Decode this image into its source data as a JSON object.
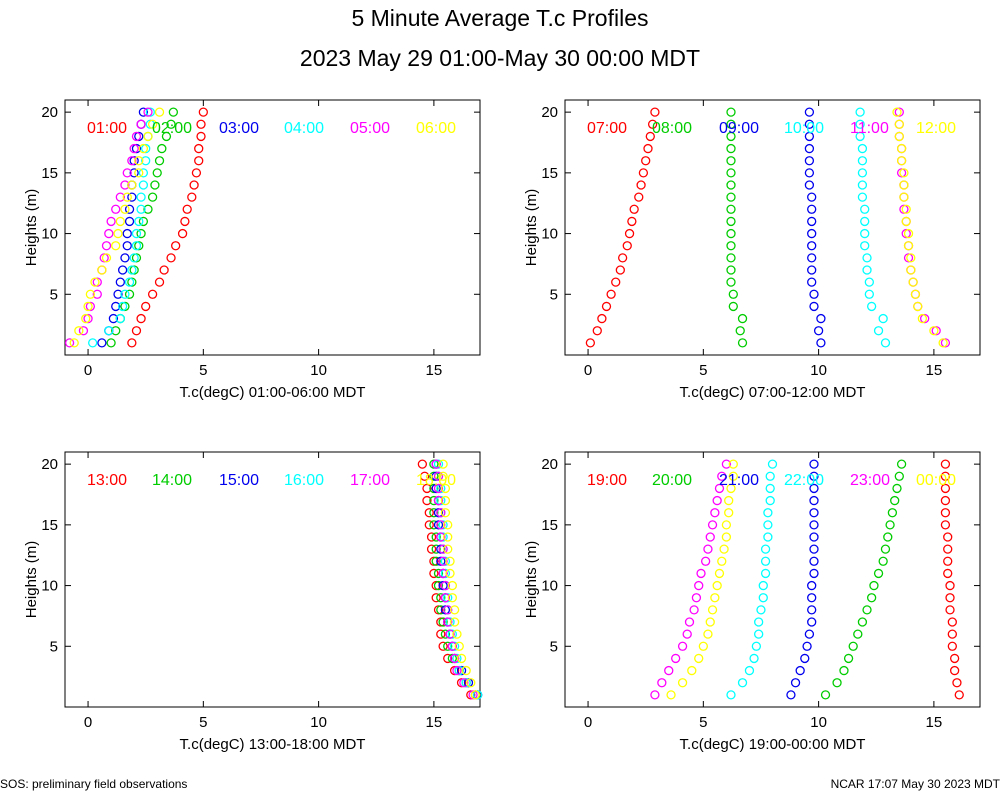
{
  "title": "5 Minute Average T.c Profiles",
  "subtitle": "2023 May 29 01:00-May 30 00:00 MDT",
  "footer_left": "SOS: preliminary field observations",
  "footer_right": "NCAR 17:07 May 30 2023 MDT",
  "colors": [
    "#ff0000",
    "#00cc00",
    "#0000ee",
    "#00ffff",
    "#ff00ff",
    "#ffff00"
  ],
  "chart_data": [
    {
      "type": "scatter",
      "xlabel": "T.c(degC) 01:00-06:00 MDT",
      "ylabel": "Heights (m)",
      "xlim": [
        -1,
        17
      ],
      "ylim": [
        0,
        21
      ],
      "xticks": [
        0,
        5,
        10,
        15
      ],
      "yticks": [
        5,
        10,
        15,
        20
      ],
      "heights": [
        1,
        2,
        3,
        4,
        5,
        6,
        7,
        8,
        9,
        10,
        11,
        12,
        13,
        14,
        15,
        16,
        17,
        18,
        19,
        20
      ],
      "series": [
        {
          "name": "01:00",
          "values": [
            1.9,
            2.1,
            2.3,
            2.5,
            2.8,
            3.1,
            3.3,
            3.6,
            3.8,
            4.1,
            4.2,
            4.3,
            4.5,
            4.6,
            4.7,
            4.8,
            4.8,
            4.9,
            4.9,
            5.0
          ]
        },
        {
          "name": "02:00",
          "values": [
            1.0,
            1.2,
            1.4,
            1.6,
            1.8,
            1.9,
            2.0,
            2.1,
            2.2,
            2.3,
            2.4,
            2.6,
            2.8,
            2.9,
            3.0,
            3.1,
            3.2,
            3.4,
            3.6,
            3.7
          ]
        },
        {
          "name": "03:00",
          "values": [
            0.6,
            0.9,
            1.1,
            1.2,
            1.3,
            1.4,
            1.5,
            1.6,
            1.7,
            1.7,
            1.8,
            1.8,
            1.9,
            1.9,
            2.0,
            2.0,
            2.1,
            2.2,
            2.3,
            2.4
          ]
        },
        {
          "name": "04:00",
          "values": [
            0.2,
            0.9,
            1.4,
            1.5,
            1.6,
            1.8,
            1.9,
            2.0,
            2.1,
            2.1,
            2.2,
            2.3,
            2.3,
            2.4,
            2.4,
            2.5,
            2.5,
            2.6,
            2.7,
            2.7
          ]
        },
        {
          "name": "05:00",
          "values": [
            -0.8,
            -0.2,
            0.0,
            0.1,
            0.4,
            0.4,
            0.6,
            0.7,
            0.8,
            0.9,
            1.0,
            1.2,
            1.4,
            1.6,
            1.7,
            1.9,
            2.0,
            2.1,
            2.3,
            2.6
          ]
        },
        {
          "name": "06:00",
          "values": [
            -0.6,
            -0.4,
            -0.1,
            0.0,
            0.1,
            0.3,
            0.6,
            0.8,
            1.2,
            1.3,
            1.4,
            1.6,
            1.7,
            1.9,
            2.2,
            2.2,
            2.4,
            2.6,
            2.8,
            3.1
          ]
        }
      ]
    },
    {
      "type": "scatter",
      "xlabel": "T.c(degC) 07:00-12:00 MDT",
      "ylabel": "Heights (m)",
      "xlim": [
        -1,
        17
      ],
      "ylim": [
        0,
        21
      ],
      "xticks": [
        0,
        5,
        10,
        15
      ],
      "yticks": [
        5,
        10,
        15,
        20
      ],
      "heights": [
        1,
        2,
        3,
        4,
        5,
        6,
        7,
        8,
        9,
        10,
        11,
        12,
        13,
        14,
        15,
        16,
        17,
        18,
        19,
        20
      ],
      "series": [
        {
          "name": "07:00",
          "values": [
            0.1,
            0.4,
            0.6,
            0.8,
            1.0,
            1.2,
            1.4,
            1.5,
            1.7,
            1.8,
            1.9,
            2.0,
            2.2,
            2.3,
            2.4,
            2.5,
            2.6,
            2.7,
            2.8,
            2.9
          ]
        },
        {
          "name": "08:00",
          "values": [
            6.7,
            6.6,
            6.7,
            6.3,
            6.3,
            6.2,
            6.2,
            6.2,
            6.2,
            6.2,
            6.2,
            6.2,
            6.2,
            6.2,
            6.2,
            6.2,
            6.2,
            6.2,
            6.2,
            6.2
          ]
        },
        {
          "name": "09:00",
          "values": [
            10.1,
            10.0,
            10.1,
            9.8,
            9.8,
            9.7,
            9.7,
            9.7,
            9.7,
            9.7,
            9.7,
            9.7,
            9.7,
            9.6,
            9.6,
            9.6,
            9.6,
            9.6,
            9.6,
            9.6
          ]
        },
        {
          "name": "10:00",
          "values": [
            12.9,
            12.6,
            12.8,
            12.3,
            12.2,
            12.2,
            12.1,
            12.1,
            12.0,
            12.0,
            12.0,
            12.0,
            11.9,
            11.9,
            11.9,
            11.9,
            11.9,
            11.8,
            11.8,
            11.8
          ]
        },
        {
          "name": "11:00",
          "values": [
            15.5,
            15.1,
            14.6,
            14.3,
            14.2,
            14.1,
            14.0,
            13.9,
            13.9,
            13.8,
            13.8,
            13.7,
            13.7,
            13.7,
            13.6,
            13.6,
            13.6,
            13.5,
            13.5,
            13.5
          ]
        },
        {
          "name": "12:00",
          "values": [
            15.4,
            15.0,
            14.5,
            14.3,
            14.2,
            14.1,
            14.0,
            14.0,
            13.9,
            13.9,
            13.8,
            13.8,
            13.7,
            13.7,
            13.7,
            13.6,
            13.6,
            13.5,
            13.5,
            13.4
          ]
        }
      ]
    },
    {
      "type": "scatter",
      "xlabel": "T.c(degC) 13:00-18:00 MDT",
      "ylabel": "Heights (m)",
      "xlim": [
        -1,
        17
      ],
      "ylim": [
        0,
        21
      ],
      "xticks": [
        0,
        5,
        10,
        15
      ],
      "yticks": [
        5,
        10,
        15,
        20
      ],
      "heights": [
        1,
        2,
        3,
        4,
        5,
        6,
        7,
        8,
        9,
        10,
        11,
        12,
        13,
        14,
        15,
        16,
        17,
        18,
        19,
        20
      ],
      "series": [
        {
          "name": "13:00",
          "values": [
            16.6,
            16.2,
            15.9,
            15.6,
            15.4,
            15.3,
            15.3,
            15.2,
            15.1,
            15.1,
            15.0,
            15.0,
            14.9,
            14.9,
            14.8,
            14.8,
            14.7,
            14.7,
            14.6,
            14.5
          ]
        },
        {
          "name": "14:00",
          "values": [
            16.8,
            16.4,
            16.1,
            15.8,
            15.6,
            15.5,
            15.4,
            15.3,
            15.3,
            15.2,
            15.2,
            15.1,
            15.1,
            15.1,
            15.0,
            15.0,
            15.0,
            15.0,
            15.0,
            15.0
          ]
        },
        {
          "name": "15:00",
          "values": [
            16.9,
            16.5,
            16.2,
            15.9,
            15.8,
            15.7,
            15.6,
            15.5,
            15.5,
            15.4,
            15.4,
            15.3,
            15.3,
            15.3,
            15.2,
            15.2,
            15.2,
            15.1,
            15.1,
            15.1
          ]
        },
        {
          "name": "16:00",
          "values": [
            16.9,
            16.4,
            16.1,
            16.0,
            15.9,
            15.8,
            15.7,
            15.6,
            15.6,
            15.5,
            15.5,
            15.5,
            15.4,
            15.4,
            15.4,
            15.3,
            15.3,
            15.3,
            15.2,
            15.2
          ]
        },
        {
          "name": "17:00",
          "values": [
            16.7,
            16.3,
            16.0,
            15.9,
            15.8,
            15.7,
            15.6,
            15.6,
            15.5,
            15.5,
            15.4,
            15.4,
            15.4,
            15.3,
            15.3,
            15.3,
            15.2,
            15.2,
            15.2,
            15.1
          ]
        },
        {
          "name": "18:00",
          "values": [
            16.8,
            16.6,
            16.4,
            16.2,
            16.1,
            16.0,
            15.9,
            15.9,
            15.8,
            15.8,
            15.7,
            15.7,
            15.6,
            15.6,
            15.6,
            15.5,
            15.5,
            15.5,
            15.4,
            15.4
          ]
        }
      ]
    },
    {
      "type": "scatter",
      "xlabel": "T.c(degC) 19:00-00:00 MDT",
      "ylabel": "Heights (m)",
      "xlim": [
        -1,
        17
      ],
      "ylim": [
        0,
        21
      ],
      "xticks": [
        0,
        5,
        10,
        15
      ],
      "yticks": [
        5,
        10,
        15,
        20
      ],
      "heights": [
        1,
        2,
        3,
        4,
        5,
        6,
        7,
        8,
        9,
        10,
        11,
        12,
        13,
        14,
        15,
        16,
        17,
        18,
        19,
        20
      ],
      "series": [
        {
          "name": "19:00",
          "values": [
            16.1,
            16.0,
            15.9,
            15.9,
            15.8,
            15.8,
            15.8,
            15.7,
            15.7,
            15.7,
            15.6,
            15.6,
            15.6,
            15.6,
            15.5,
            15.5,
            15.5,
            15.5,
            15.5,
            15.5
          ]
        },
        {
          "name": "20:00",
          "values": [
            10.3,
            10.8,
            11.1,
            11.3,
            11.5,
            11.7,
            11.9,
            12.1,
            12.3,
            12.4,
            12.6,
            12.8,
            12.9,
            13.0,
            13.1,
            13.2,
            13.3,
            13.4,
            13.5,
            13.6
          ]
        },
        {
          "name": "21:00",
          "values": [
            8.8,
            9.0,
            9.2,
            9.4,
            9.5,
            9.6,
            9.7,
            9.7,
            9.7,
            9.7,
            9.8,
            9.8,
            9.8,
            9.8,
            9.8,
            9.8,
            9.8,
            9.8,
            9.8,
            9.8
          ]
        },
        {
          "name": "22:00",
          "values": [
            6.2,
            6.7,
            7.0,
            7.2,
            7.3,
            7.4,
            7.4,
            7.5,
            7.6,
            7.6,
            7.7,
            7.7,
            7.7,
            7.8,
            7.8,
            7.8,
            7.9,
            7.9,
            7.9,
            8.0
          ]
        },
        {
          "name": "23:00",
          "values": [
            2.9,
            3.2,
            3.5,
            3.8,
            4.1,
            4.3,
            4.4,
            4.6,
            4.7,
            4.8,
            4.9,
            5.1,
            5.2,
            5.3,
            5.4,
            5.5,
            5.6,
            5.7,
            5.8,
            6.0
          ]
        },
        {
          "name": "00:00",
          "values": [
            3.6,
            4.1,
            4.5,
            4.8,
            5.0,
            5.2,
            5.3,
            5.4,
            5.5,
            5.6,
            5.7,
            5.8,
            5.9,
            6.0,
            6.0,
            6.1,
            6.1,
            6.2,
            6.3,
            6.3
          ]
        }
      ]
    }
  ]
}
